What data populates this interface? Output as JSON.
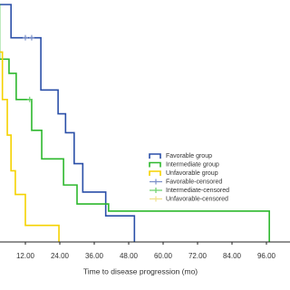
{
  "chart_data": {
    "type": "line",
    "step": true,
    "x_label": "Time to disease progression (mo)",
    "xlim": [
      0,
      102
    ],
    "ylim": [
      0,
      1
    ],
    "xticks": [
      {
        "value": 12,
        "label": "12.00"
      },
      {
        "value": 24,
        "label": "24.00"
      },
      {
        "value": 36,
        "label": "36.00"
      },
      {
        "value": 48,
        "label": "48.00"
      },
      {
        "value": 60,
        "label": "60.00"
      },
      {
        "value": 72,
        "label": "72.00"
      },
      {
        "value": 84,
        "label": "84.00"
      },
      {
        "value": 96,
        "label": "96.00"
      }
    ],
    "legend": "right",
    "series": [
      {
        "name": "Favorable group",
        "color": "#2a4fa8",
        "marker": "none",
        "x": [
          0,
          7,
          17.4,
          23.4,
          26,
          29,
          32,
          40,
          50
        ],
        "values": [
          1,
          0.86,
          0.64,
          0.54,
          0.46,
          0.33,
          0.21,
          0.11,
          0
        ]
      },
      {
        "name": "Intermediate group",
        "color": "#2db82d",
        "marker": "none",
        "x": [
          0,
          3,
          6.3,
          8.8,
          14.2,
          17.7,
          25.3,
          30,
          41,
          97
        ],
        "values": [
          1,
          0.77,
          0.71,
          0.6,
          0.47,
          0.35,
          0.24,
          0.16,
          0.13,
          0
        ]
      },
      {
        "name": "Unfavorable group",
        "color": "#f5d200",
        "marker": "none",
        "x": [
          0,
          2,
          4,
          5.7,
          7,
          8.5,
          12,
          23.7
        ],
        "values": [
          1,
          0.8,
          0.6,
          0.45,
          0.3,
          0.2,
          0.07,
          0
        ]
      },
      {
        "name": "Favorable-censored",
        "color": "#7a8fc8",
        "marker": "+",
        "x": [
          12,
          14.2
        ],
        "values": [
          0.86,
          0.86
        ]
      },
      {
        "name": "Intermediate-censored",
        "color": "#6cd06c",
        "marker": "+",
        "x": [
          13.5
        ],
        "values": [
          0.6
        ]
      },
      {
        "name": "Unfavorable-censored",
        "color": "#f0e08a",
        "marker": "+",
        "x": [],
        "values": []
      }
    ]
  }
}
